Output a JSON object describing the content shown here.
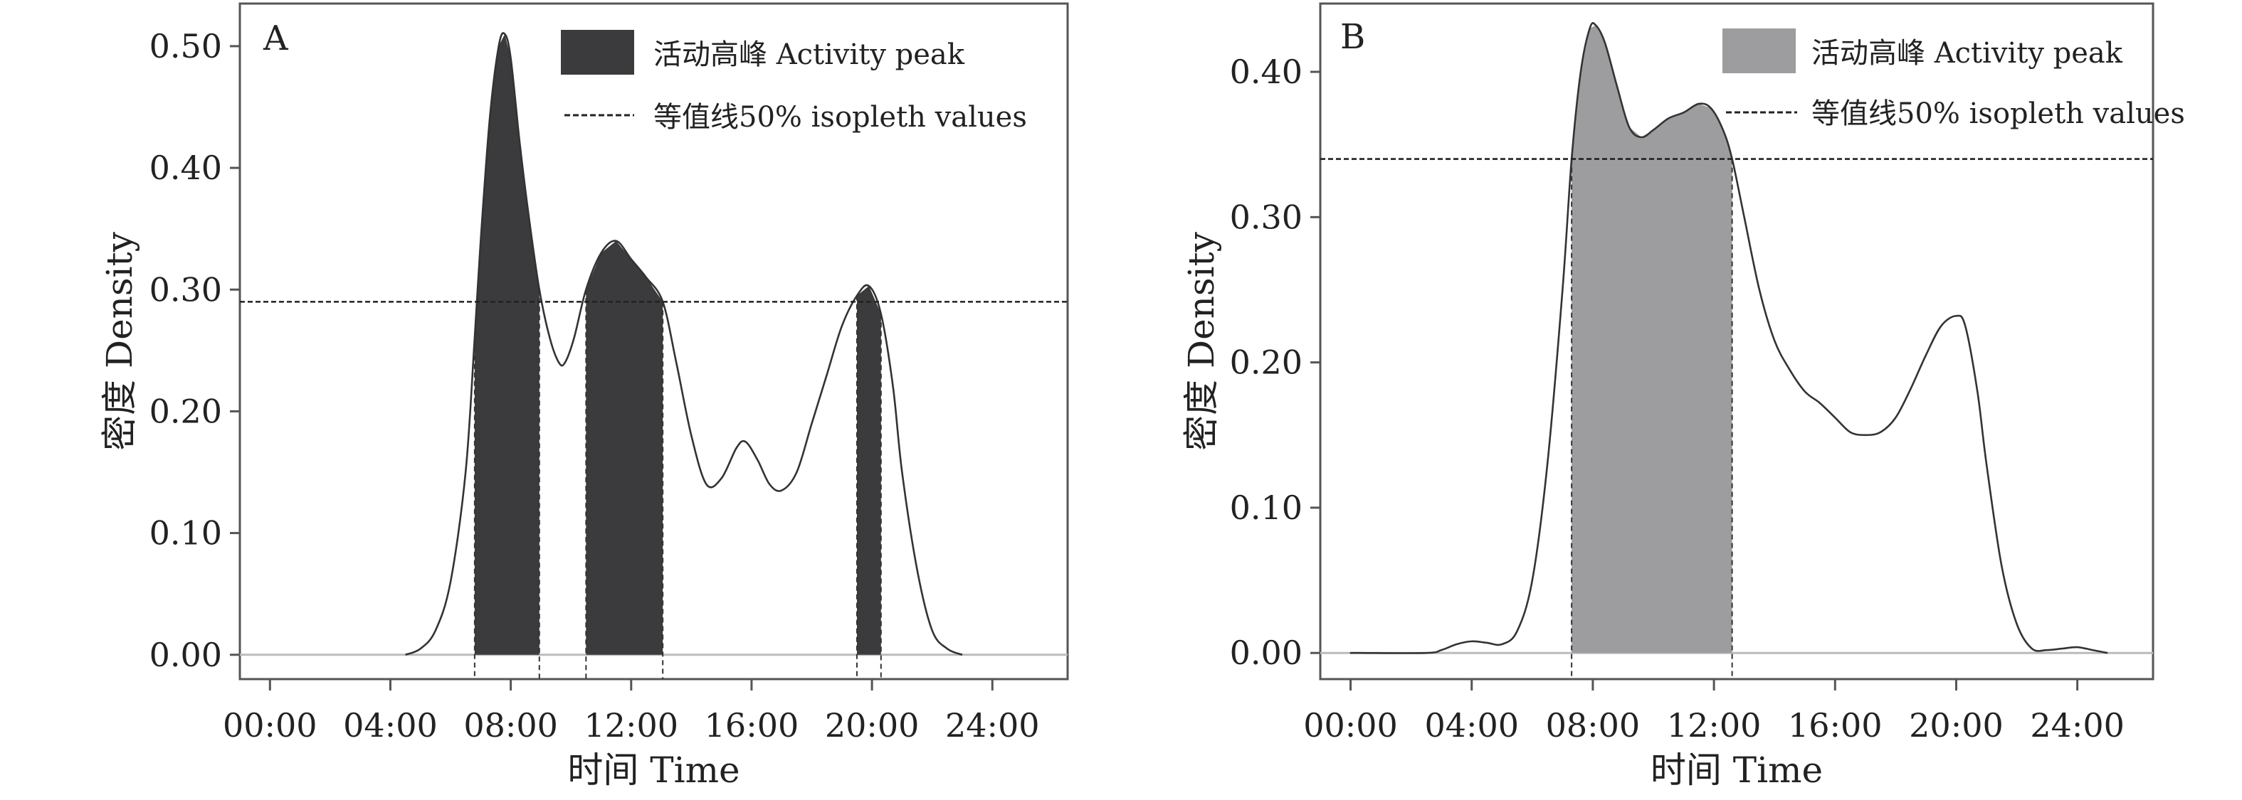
{
  "colors": {
    "peak_a": "#3b3b3d",
    "peak_b": "#9d9d9f",
    "line": "#333333",
    "frame": "#555555",
    "zero_line": "#bbbbbb"
  },
  "chart_data": [
    {
      "type": "area",
      "panel_label": "A",
      "xlabel": "时间 Time",
      "ylabel": "密度 Density",
      "x_ticks": [
        "00:00",
        "04:00",
        "08:00",
        "12:00",
        "16:00",
        "20:00",
        "24:00"
      ],
      "y_ticks": [
        "0.00",
        "0.10",
        "0.20",
        "0.30",
        "0.40",
        "0.50"
      ],
      "xlim": [
        -1,
        26.5
      ],
      "ylim": [
        -0.02,
        0.535
      ],
      "isopleth_value": 0.29,
      "legend": {
        "peak_label": "活动高峰 Activity peak",
        "isopleth_label": "等值线50% isopleth values",
        "position": "top-right"
      },
      "peak_intervals": [
        [
          6.8,
          8.95
        ],
        [
          10.5,
          13.05
        ],
        [
          19.5,
          20.3
        ]
      ],
      "series": [
        {
          "x": [
            4.5,
            5.0,
            5.5,
            6.0,
            6.5,
            6.8,
            7.0,
            7.3,
            7.6,
            7.8,
            8.0,
            8.3,
            8.6,
            8.95,
            9.3,
            9.6,
            9.8,
            10.1,
            10.5,
            11.0,
            11.5,
            12.0,
            12.5,
            13.05,
            13.5,
            14.0,
            14.5,
            15.0,
            15.5,
            15.8,
            16.2,
            16.6,
            17.0,
            17.5,
            18.0,
            18.5,
            19.0,
            19.5,
            19.9,
            20.3,
            20.7,
            21.0,
            21.5,
            22.0,
            22.5,
            23.0
          ],
          "y": [
            0.0,
            0.005,
            0.02,
            0.06,
            0.15,
            0.26,
            0.34,
            0.44,
            0.5,
            0.51,
            0.49,
            0.42,
            0.36,
            0.3,
            0.26,
            0.24,
            0.24,
            0.26,
            0.3,
            0.33,
            0.34,
            0.325,
            0.31,
            0.29,
            0.24,
            0.18,
            0.14,
            0.145,
            0.17,
            0.175,
            0.16,
            0.14,
            0.135,
            0.15,
            0.19,
            0.23,
            0.27,
            0.295,
            0.303,
            0.28,
            0.22,
            0.15,
            0.07,
            0.02,
            0.005,
            0.0
          ]
        }
      ]
    },
    {
      "type": "area",
      "panel_label": "B",
      "xlabel": "时间 Time",
      "ylabel": "密度 Density",
      "x_ticks": [
        "00:00",
        "04:00",
        "08:00",
        "12:00",
        "16:00",
        "20:00",
        "24:00"
      ],
      "y_ticks": [
        "0.00",
        "0.10",
        "0.20",
        "0.30",
        "0.40"
      ],
      "xlim": [
        -1,
        26.5
      ],
      "ylim": [
        -0.018,
        0.447
      ],
      "isopleth_value": 0.34,
      "legend": {
        "peak_label": "活动高峰 Activity peak",
        "isopleth_label": "等值线50% isopleth values",
        "position": "top-right"
      },
      "peak_intervals": [
        [
          7.3,
          12.6
        ]
      ],
      "series": [
        {
          "x": [
            0.0,
            0.3,
            2.5,
            3.0,
            3.5,
            4.0,
            4.5,
            5.0,
            5.5,
            6.0,
            6.5,
            7.0,
            7.3,
            7.6,
            7.9,
            8.1,
            8.4,
            8.8,
            9.2,
            9.6,
            10.0,
            10.5,
            11.0,
            11.5,
            11.9,
            12.3,
            12.6,
            13.0,
            13.5,
            14.0,
            14.5,
            15.0,
            15.5,
            16.0,
            16.5,
            17.0,
            17.5,
            18.0,
            18.5,
            19.0,
            19.5,
            20.0,
            20.3,
            20.7,
            21.0,
            21.5,
            22.0,
            22.5,
            23.0,
            23.5,
            24.0,
            24.5,
            25.0
          ],
          "y": [
            0.0,
            0.0,
            0.0,
            0.002,
            0.006,
            0.008,
            0.007,
            0.006,
            0.015,
            0.05,
            0.13,
            0.25,
            0.34,
            0.4,
            0.43,
            0.432,
            0.42,
            0.39,
            0.362,
            0.355,
            0.36,
            0.368,
            0.372,
            0.378,
            0.375,
            0.36,
            0.34,
            0.3,
            0.25,
            0.215,
            0.195,
            0.18,
            0.172,
            0.162,
            0.152,
            0.15,
            0.152,
            0.162,
            0.182,
            0.205,
            0.225,
            0.232,
            0.225,
            0.18,
            0.13,
            0.06,
            0.02,
            0.003,
            0.002,
            0.003,
            0.004,
            0.002,
            0.0
          ]
        }
      ]
    }
  ]
}
